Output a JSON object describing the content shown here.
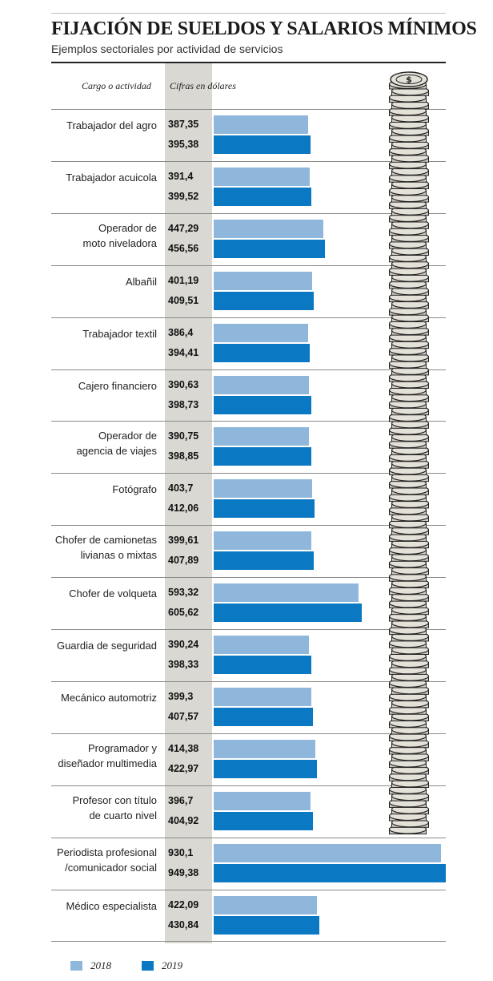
{
  "title": "FIJACIÓN DE SUELDOS Y SALARIOS MÍNIMOS",
  "subtitle": "Ejemplos sectoriales por actividad de servicios",
  "header": {
    "category": "Cargo o actividad",
    "values": "Cifras en dólares"
  },
  "colors": {
    "2018": "#8fb7dc",
    "2019": "#0a78c2",
    "value_column": "#d9d8d3"
  },
  "decoration": {
    "icon": "dollar-coin-stack-icon"
  },
  "chart_data": {
    "type": "bar",
    "orientation": "horizontal",
    "title": "FIJACIÓN DE SUELDOS Y SALARIOS MÍNIMOS",
    "subtitle": "Ejemplos sectoriales por actividad de servicios",
    "unit": "Cifras en dólares",
    "categories": [
      "Trabajador del agro",
      "Trabajador acuicola",
      "Operador de moto niveladora",
      "Albañil",
      "Trabajador textil",
      "Cajero financiero",
      "Operador de agencia de viajes",
      "Fotógrafo",
      "Chofer de camionetas livianas o mixtas",
      "Chofer de volqueta",
      "Guardia de seguridad",
      "Mecánico automotriz",
      "Programador y diseñador multimedia",
      "Profesor con título de cuarto nivel",
      "Periodista profesional /comunicador social",
      "Médico especialista"
    ],
    "category_lines": [
      [
        "Trabajador del agro"
      ],
      [
        "Trabajador acuicola"
      ],
      [
        "Operador de",
        "moto niveladora"
      ],
      [
        "Albañil"
      ],
      [
        "Trabajador textil"
      ],
      [
        "Cajero financiero"
      ],
      [
        "Operador de",
        "agencia de viajes"
      ],
      [
        "Fotógrafo"
      ],
      [
        "Chofer de camionetas",
        "livianas o mixtas"
      ],
      [
        "Chofer de volqueta"
      ],
      [
        "Guardia de seguridad"
      ],
      [
        "Mecánico automotriz"
      ],
      [
        "Programador y",
        "diseñador multimedia"
      ],
      [
        "Profesor con título",
        "de cuarto nivel"
      ],
      [
        "Periodista profesional",
        "/comunicador social"
      ],
      [
        "Médico especialista"
      ]
    ],
    "series": [
      {
        "name": "2018",
        "color": "#8fb7dc",
        "values": [
          387.35,
          391.4,
          447.29,
          401.19,
          386.4,
          390.63,
          390.75,
          403.7,
          399.61,
          593.32,
          390.24,
          399.3,
          414.38,
          396.7,
          930.1,
          422.09
        ],
        "labels": [
          "387,35",
          "391,4",
          "447,29",
          "401,19",
          "386,4",
          "390,63",
          "390,75",
          "403,7",
          "399,61",
          "593,32",
          "390,24",
          "399,3",
          "414,38",
          "396,7",
          "930,1",
          "422,09"
        ]
      },
      {
        "name": "2019",
        "color": "#0a78c2",
        "values": [
          395.38,
          399.52,
          456.56,
          409.51,
          394.41,
          398.73,
          398.85,
          412.06,
          407.89,
          605.62,
          398.33,
          407.57,
          422.97,
          404.92,
          949.38,
          430.84
        ],
        "labels": [
          "395,38",
          "399,52",
          "456,56",
          "409,51",
          "394,41",
          "398,73",
          "398,85",
          "412,06",
          "407,89",
          "605,62",
          "398,33",
          "407,57",
          "422,97",
          "404,92",
          "949,38",
          "430,84"
        ]
      }
    ],
    "xlim": [
      0,
      949.38
    ],
    "legend": "bottom-left",
    "grid": false
  }
}
